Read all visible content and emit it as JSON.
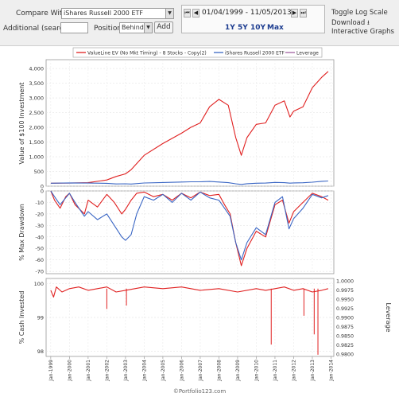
{
  "controls": {
    "compare_label": "Compare With",
    "compare_value": "iShares Russell 2000 ETF",
    "additional_label": "Additional (search)",
    "additional_value": "",
    "position_label": "Position",
    "position_value": "Behind",
    "add_label": "Add",
    "date_range": "01/04/1999 - 11/05/2013",
    "ranges": [
      "1Y",
      "5Y",
      "10Y",
      "Max"
    ],
    "toggle_log": "Toggle Log Scale",
    "download": "Download",
    "interactive": "Interactive Graphs"
  },
  "footer": "©Portfolio123.com",
  "colors": {
    "strategy": "#e02020",
    "benchmark": "#3a66c4",
    "leverage": "#a060a0"
  },
  "chart_data": [
    {
      "type": "line",
      "ylabel": "Value of $100 Investment",
      "ylim": [
        0,
        4300
      ],
      "yticks": [
        0,
        500,
        1000,
        1500,
        2000,
        2500,
        3000,
        3500,
        4000
      ],
      "ytick_labels": [
        "0",
        "500",
        "1,000",
        "1,500",
        "2,000",
        "2,500",
        "3,000",
        "3,500",
        "4,000"
      ],
      "legend": [
        "ValueLine EV (No Mkt Timing) - 8 Stocks - Copy(2)",
        "iShares Russell 2000 ETF",
        "Leverage"
      ],
      "legend_position": "top",
      "x": [
        1999.0,
        2000.0,
        2001.0,
        2002.0,
        2002.5,
        2003.0,
        2003.3,
        2004.0,
        2005.0,
        2006.0,
        2006.5,
        2007.0,
        2007.5,
        2008.0,
        2008.5,
        2008.9,
        2009.2,
        2009.5,
        2010.0,
        2010.5,
        2011.0,
        2011.5,
        2011.8,
        2012.0,
        2012.5,
        2013.0,
        2013.5,
        2013.85
      ],
      "series": [
        {
          "name": "ValueLine EV (No Mkt Timing) - 8 Stocks - Copy(2)",
          "values": [
            100,
            105,
            120,
            210,
            330,
            420,
            560,
            1050,
            1450,
            1800,
            2000,
            2150,
            2700,
            2950,
            2750,
            1650,
            1050,
            1650,
            2100,
            2150,
            2750,
            2900,
            2350,
            2550,
            2700,
            3350,
            3700,
            3900
          ]
        },
        {
          "name": "iShares Russell 2000 ETF",
          "values": [
            100,
            110,
            105,
            98,
            75,
            82,
            72,
            108,
            125,
            140,
            148,
            150,
            160,
            140,
            120,
            80,
            60,
            85,
            100,
            105,
            128,
            120,
            102,
            112,
            115,
            135,
            165,
            175
          ]
        }
      ]
    },
    {
      "type": "line",
      "ylabel": "% Max Drawdown",
      "ylim": [
        -72,
        0
      ],
      "yticks": [
        0,
        -10,
        -20,
        -30,
        -40,
        -50,
        -60,
        -70
      ],
      "ytick_labels": [
        "0",
        "-10",
        "-20",
        "-30",
        "-40",
        "-50",
        "-60",
        "-70"
      ],
      "x": [
        1999.0,
        1999.2,
        1999.5,
        1999.8,
        2000.0,
        2000.3,
        2000.8,
        2001.0,
        2001.5,
        2002.0,
        2002.4,
        2002.8,
        2003.0,
        2003.3,
        2003.6,
        2004.0,
        2004.5,
        2005.0,
        2005.5,
        2006.0,
        2006.5,
        2007.0,
        2007.5,
        2008.0,
        2008.3,
        2008.6,
        2008.9,
        2009.2,
        2009.5,
        2010.0,
        2010.5,
        2011.0,
        2011.4,
        2011.75,
        2012.0,
        2012.5,
        2013.0,
        2013.5,
        2013.85
      ],
      "series": [
        {
          "name": "ValueLine EV (No Mkt Timing) - 8 Stocks - Copy(2)",
          "values": [
            0,
            -8,
            -15,
            -5,
            -2,
            -12,
            -20,
            -8,
            -14,
            -3,
            -10,
            -20,
            -16,
            -8,
            -2,
            -1,
            -5,
            -3,
            -8,
            -2,
            -6,
            -1,
            -4,
            -3,
            -12,
            -20,
            -45,
            -65,
            -50,
            -35,
            -40,
            -12,
            -8,
            -28,
            -18,
            -10,
            -2,
            -5,
            -8
          ]
        },
        {
          "name": "iShares Russell 2000 ETF",
          "values": [
            0,
            -5,
            -12,
            -6,
            -2,
            -10,
            -22,
            -18,
            -25,
            -20,
            -30,
            -40,
            -43,
            -38,
            -20,
            -5,
            -8,
            -3,
            -10,
            -2,
            -8,
            -1,
            -6,
            -8,
            -15,
            -22,
            -45,
            -60,
            -45,
            -32,
            -38,
            -10,
            -5,
            -33,
            -24,
            -15,
            -3,
            -6,
            -4
          ]
        }
      ]
    },
    {
      "type": "line",
      "ylabel": "% Cash Invested",
      "ylabel_right": "Leverage",
      "ylim": [
        97.85,
        100.15
      ],
      "yticks": [
        98,
        99,
        100
      ],
      "ytick_labels": [
        "98",
        "99",
        "100"
      ],
      "yticks_right": [
        "1.0000",
        "0.9975",
        "0.9950",
        "0.9925",
        "0.9900",
        "0.9875",
        "0.9850",
        "0.9825",
        "0.9800"
      ],
      "x": [
        1999.0,
        1999.15,
        1999.3,
        1999.6,
        2000.0,
        2000.5,
        2001.0,
        2001.5,
        2002.0,
        2002.5,
        2003.0,
        2003.5,
        2004.0,
        2005.0,
        2006.0,
        2007.0,
        2008.0,
        2009.0,
        2010.0,
        2010.5,
        2011.0,
        2011.5,
        2012.0,
        2012.5,
        2013.0,
        2013.5,
        2013.85
      ],
      "series": [
        {
          "name": "ValueLine EV (No Mkt Timing) - 8 Stocks - Copy(2)",
          "values": [
            99.8,
            99.6,
            99.9,
            99.75,
            99.85,
            99.9,
            99.8,
            99.85,
            99.9,
            99.75,
            99.8,
            99.85,
            99.9,
            99.85,
            99.9,
            99.8,
            99.85,
            99.75,
            99.85,
            99.8,
            99.85,
            99.9,
            99.8,
            99.85,
            99.75,
            99.8,
            99.85
          ]
        }
      ],
      "spikes": [
        {
          "x": 2002.0,
          "value": 99.25
        },
        {
          "x": 2003.05,
          "value": 99.35
        },
        {
          "x": 2010.8,
          "value": 98.2
        },
        {
          "x": 2012.55,
          "value": 99.05
        },
        {
          "x": 2013.1,
          "value": 98.5
        },
        {
          "x": 2013.3,
          "value": 97.9
        }
      ]
    }
  ],
  "x_axis": {
    "range": [
      1998.75,
      2014.15
    ],
    "ticks": [
      "Jan-1999",
      "Jan-2000",
      "Jan-2001",
      "Jan-2002",
      "Jan-2003",
      "Jan-2004",
      "Jan-2005",
      "Jan-2006",
      "Jan-2007",
      "Jan-2008",
      "Jan-2009",
      "Jan-2010",
      "Jan-2011",
      "Jan-2012",
      "Jan-2013",
      "Jan-2014"
    ]
  }
}
